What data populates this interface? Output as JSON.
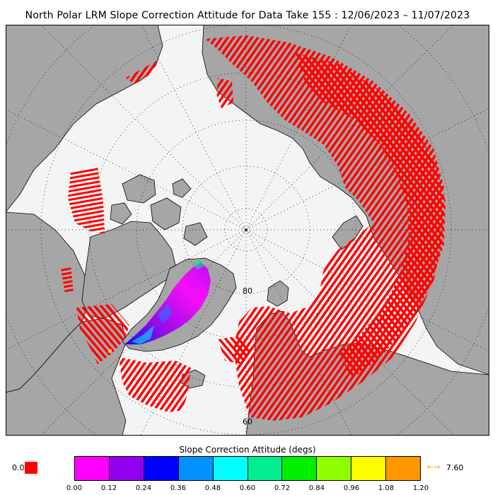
{
  "title": "North Polar LRM Slope Correction Attitude for Data Take 155 : 12/06/2023 – 11/07/2023",
  "map": {
    "latitude_labels": [
      "80",
      "60"
    ],
    "colors": {
      "ocean": "#f4f4f4",
      "land": "#a6a6a6",
      "outline": "#000000",
      "grid": "#000000",
      "track": "#ff0000"
    }
  },
  "colorbar": {
    "title": "Slope Correction Attitude (degs)",
    "colors": [
      "#ff00ff",
      "#9000ee",
      "#0000ff",
      "#0090ff",
      "#00ffff",
      "#00ee90",
      "#00ee00",
      "#90ff00",
      "#ffff00",
      "#ff9800"
    ],
    "ticks": [
      "0.00",
      "0.12",
      "0.24",
      "0.36",
      "0.48",
      "0.60",
      "0.72",
      "0.84",
      "0.96",
      "1.08",
      "1.20"
    ],
    "min_label": "0.0",
    "min_color": "#ff0000",
    "max_arrow": "←→",
    "max_label": "7.60",
    "max_color": "#ff9800"
  }
}
